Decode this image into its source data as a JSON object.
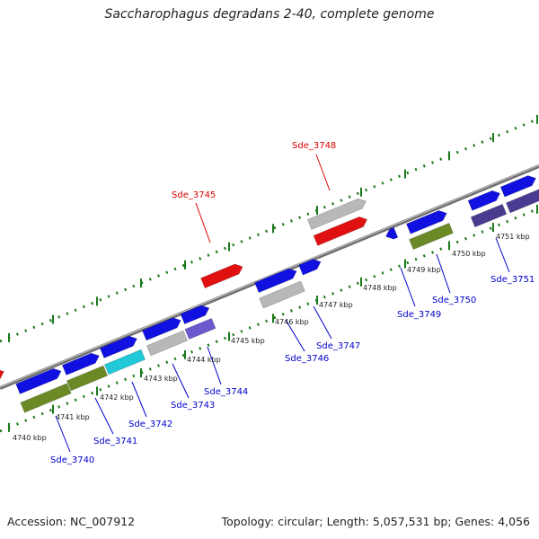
{
  "title": "Saccharophagus degradans 2-40, complete genome",
  "footer": {
    "accession": "Accession: NC_007912",
    "summary": "Topology: circular; Length: 5,057,531 bp; Genes: 4,056"
  },
  "colors": {
    "backbone": "#8a8a8a",
    "tick": "#1a7a1a",
    "blue": "#1010e0",
    "red": "#e01010",
    "gray": "#b8b8b8",
    "olive": "#6b8a25",
    "cyan": "#20c8d8",
    "slate": "#6a5acd",
    "navy": "#4a3a90",
    "label_blue": "#0000cc",
    "label_red": "#dd0000"
  },
  "kbp_labels": [
    "4740 kbp",
    "4741 kbp",
    "4742 kbp",
    "4743 kbp",
    "4744 kbp",
    "4745 kbp",
    "4746 kbp",
    "4747 kbp",
    "4748 kbp",
    "4749 kbp",
    "4750 kbp",
    "4751 kbp"
  ],
  "gene_labels": [
    {
      "text": "Sde_3740",
      "color": "blue"
    },
    {
      "text": "Sde_3741",
      "color": "blue"
    },
    {
      "text": "Sde_3742",
      "color": "blue"
    },
    {
      "text": "Sde_3743",
      "color": "blue"
    },
    {
      "text": "Sde_3744",
      "color": "blue"
    },
    {
      "text": "Sde_3745",
      "color": "red"
    },
    {
      "text": "Sde_3746",
      "color": "blue"
    },
    {
      "text": "Sde_3747",
      "color": "blue"
    },
    {
      "text": "Sde_3748",
      "color": "red"
    },
    {
      "text": "Sde_3749",
      "color": "blue"
    },
    {
      "text": "Sde_3750",
      "color": "blue"
    },
    {
      "text": "Sde_3751",
      "color": "blue"
    }
  ]
}
